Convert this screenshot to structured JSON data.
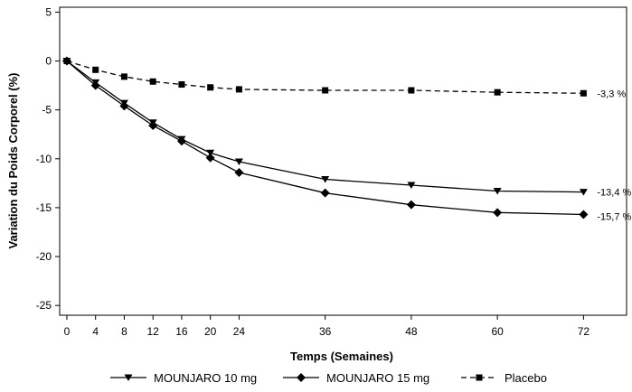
{
  "chart_data": {
    "type": "line",
    "title": "",
    "xlabel": "Temps (Semaines)",
    "ylabel": "Variation du Poids Corporel (%)",
    "xlim": [
      -1,
      78
    ],
    "ylim": [
      -26,
      5.5
    ],
    "xticks": [
      0,
      4,
      8,
      12,
      16,
      20,
      24,
      36,
      48,
      60,
      72
    ],
    "yticks": [
      5,
      0,
      -5,
      -10,
      -15,
      -20,
      -25
    ],
    "x": [
      0,
      4,
      8,
      12,
      16,
      20,
      24,
      36,
      48,
      60,
      72
    ],
    "grid": false,
    "legend_position": "bottom",
    "series": [
      {
        "name": "MOUNJARO 10 mg",
        "marker": "triangle-down-icon",
        "dash": false,
        "values": [
          0,
          -2.2,
          -4.3,
          -6.3,
          -8.0,
          -9.4,
          -10.3,
          -12.1,
          -12.7,
          -13.3,
          -13.4
        ],
        "end_label": "-13,4 %"
      },
      {
        "name": "MOUNJARO 15 mg",
        "marker": "diamond-icon",
        "dash": false,
        "values": [
          0,
          -2.5,
          -4.6,
          -6.6,
          -8.2,
          -9.9,
          -11.4,
          -13.5,
          -14.7,
          -15.5,
          -15.7
        ],
        "end_label": "-15,7 %"
      },
      {
        "name": "Placebo",
        "marker": "square-icon",
        "dash": true,
        "values": [
          0,
          -0.9,
          -1.6,
          -2.1,
          -2.4,
          -2.7,
          -2.9,
          -3.0,
          -3.0,
          -3.2,
          -3.3
        ],
        "end_label": "-3,3 %"
      }
    ],
    "color": "#000000"
  }
}
